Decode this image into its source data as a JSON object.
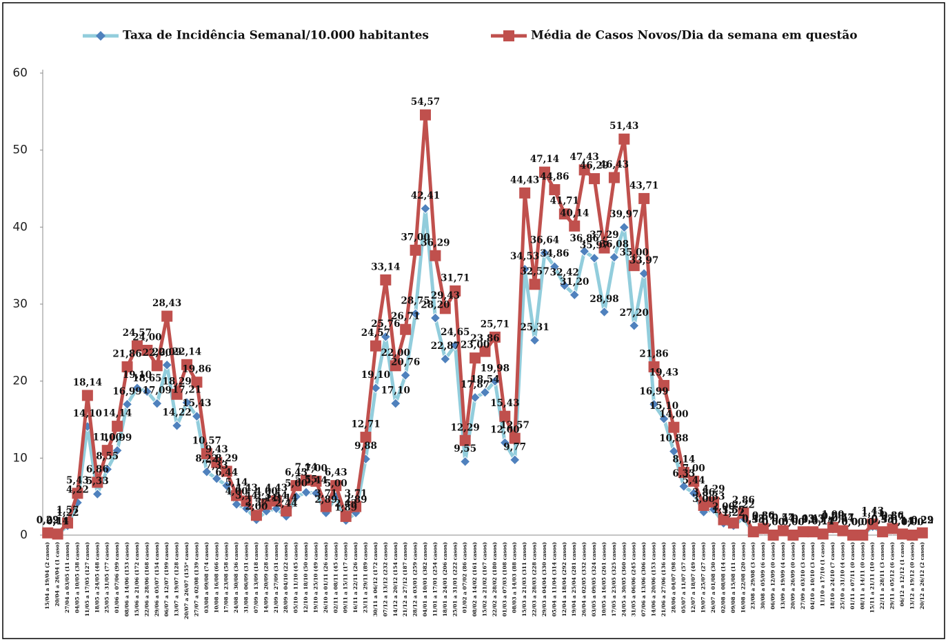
{
  "chart_data": {
    "type": "line",
    "categories": [
      "15/04 a 19/04 (2 casos)",
      "20/04 a 26/04 (1 caso)",
      "27/04 a 03/05 (11 casos)",
      "04/05 a 10/05 (38 casos)",
      "11/05 a 17/05 (127 casos)",
      "18/05 a 24/05 (48 casos)",
      "25/05 a 31/05 (77 casos)",
      "01/06 a 07/06 (99 casos)",
      "08/06 a 14/06 (153 casos)",
      "15/06 a 21/06 (172 casos)",
      "22/06 a 28/06 (168 casos)",
      "29/06 a 05/07 (154 casos)",
      "06/07 a 12/07 (199 casos)",
      "13/07 a 19/07 (128 casos)",
      "20/07 a 26/07 (155* casos)",
      "27/07 a 02/08 (139 casos)",
      "03/08 a 09/08 (74 casos)",
      "10/08 a 16/08 (66 casos)",
      "17/08 a 23/08 (58 casos)",
      "24/08 a 30/08 (36 casos)",
      "31/08 a 06/09 (31 casos)",
      "07/09 a 13/09 (18 casos)",
      "14/09 a 20/09 (28 casos)",
      "21/09 a 27/09 (31 casos)",
      "28/09 a 04/10 (22 casos)",
      "05/10 a 11/10 (45 casos)",
      "12/10 a 18/10 (50 casos)",
      "19/10 a 25/10 (49 casos)",
      "26/10 a 01/11 (26 casos)",
      "02/11 a 08/11 (45 casos)",
      "09/11 a 15/11 (17 casos)",
      "16/11 a 22/11 (26 casos)",
      "23/11 a 29/11 (89 casos)",
      "30/11 a 06/12 (172 casos)",
      "07/12 a 13/12 (232 casos)",
      "14/12 a 20/12 (154 casos)",
      "21/12 a 27/12 (187 casos)",
      "28/12 a 03/01 (259 casos)",
      "04/01 a 10/01 (382 casos)",
      "11/01 a 17/01 (254 casos)",
      "18/01 a 24/01 (206 casos)",
      "25/01 a 31/01 (222 casos)",
      "01/02 a 07/02 (86 casos)",
      "08/02 a 14/02 (161 casos)",
      "15/02 a 21/02 (167 casos)",
      "22/02 a 28/02 (180 casos)",
      "01/03 a 07/03 (108 casos)",
      "08/03 a 14/03 (88 casos)",
      "15/03 a 21/03 (311 casos)",
      "22/03 a 28/03 (228 casos)",
      "29/03 a 04/04 (330 casos)",
      "05/04 a 11/04 (314 casos)",
      "12/04 a 18/04 (292 casos)",
      "19/04 a 25/04 (281 casos)",
      "26/04 a 02/05 (332 casos)",
      "03/05 a 09/05 (324 casos)",
      "10/05 a 16/05 (261 casos)",
      "17/05 a 23/05 (325 casos)",
      "24/05 a 30/05 (360 casos)",
      "31/05 a 06/06 (245 casos)",
      "07/06 a 13/06 (306 casos)",
      "14/06 a 20/06 (153 casos)",
      "21/06 a 27/06 (136 casos)",
      "28/06 a 04/07 (98 casos)",
      "05/07 a 11/07 (57 casos)",
      "12/07 a 18/07 (49 casos)",
      "19/07 a 25/07 (27 casos)",
      "26/07 a 01/08 (30 casos)",
      "02/08 a 08/08 (14 casos)",
      "09/08 a 15/08 (11 casos)",
      "16/08 a 22/08 (20 casos)",
      "23/08 a 29/08 (3 casos)",
      "30/08 a 05/09 (6 casos)",
      "06/09 a 12/09 (0 casos)",
      "13/09 a 19/09 (4 casos)",
      "20/09 a 26/09 (0 casos)",
      "27/09 a 03/10 (3 casos)",
      "04/10 a 10/10 (3 casos)",
      "11/10 a 17/10 (1 caso)",
      "18/10 a 24/10 (7 casos)",
      "25/10 a 31/10 (4 casos)",
      "01/11 a 07/11 (0 casos)",
      "08/11 a 14/11 (0 casos)",
      "15/11 a 21/11 (10 casos)",
      "22/11 a 28/11 (3 casos)",
      "29/11 a 05/12 (6 casos)",
      "06/12 a 12/12 (1 caso)",
      "13/12 a 19/12 (0 casos)",
      "20/12 a 26/12 (2 casos)"
    ],
    "series": [
      {
        "name": "Taxa de Incidência Semanal/10.000 habitantes",
        "color": "#92cddc",
        "marker_color": "#4f81bd",
        "marker": "diamond",
        "values": [
          0.22,
          0.11,
          1.22,
          4.22,
          14.1,
          5.33,
          8.55,
          10.99,
          16.99,
          19.1,
          18.65,
          17.09,
          22.09,
          14.22,
          17.21,
          15.43,
          8.22,
          7.33,
          6.44,
          4.0,
          3.44,
          2.0,
          3.11,
          3.44,
          2.44,
          5.0,
          5.55,
          5.44,
          2.89,
          5.0,
          1.89,
          2.89,
          9.88,
          19.1,
          25.76,
          17.1,
          20.76,
          28.75,
          42.41,
          28.2,
          22.87,
          24.65,
          9.55,
          17.87,
          18.54,
          19.98,
          12.0,
          9.77,
          34.53,
          25.31,
          36.64,
          34.86,
          32.42,
          31.2,
          36.86,
          35.97,
          28.98,
          36.08,
          39.97,
          27.2,
          33.97,
          16.99,
          15.1,
          10.88,
          6.33,
          5.44,
          3.0,
          3.33,
          1.55,
          1.22,
          2.22,
          0.33,
          0.67,
          0.0,
          0.44,
          0.0,
          0.33,
          0.33,
          0.11,
          0.78,
          0.44,
          0.0,
          0.0,
          1.11,
          0.33,
          0.67,
          0.11,
          0.0,
          0.22
        ],
        "value_labels": [
          "0,22",
          "0,11",
          "1,22",
          "4,22",
          "14,10",
          "5,33",
          "8,55",
          "10,99",
          "16,99",
          "19,10",
          "18,65",
          "17,09",
          "22,09",
          "14,22",
          "17,21",
          "15,43",
          "8,22",
          "7,33",
          "6,44",
          "4,00",
          "3,44",
          "2,00",
          "3,11",
          "3,44",
          "2,44",
          "5,00",
          "5,55",
          "5,44",
          "2,89",
          "5,00",
          "1,89",
          "2,89",
          "9,88",
          "19,10",
          "25,76",
          "17,10",
          "20,76",
          "28,75",
          "42,41",
          "28,20",
          "22,87",
          "24,65",
          "9,55",
          "17,87",
          "18,54",
          "19,98",
          "12,00",
          "9,77",
          "34,53",
          "25,31",
          "36,64",
          "34,86",
          "32,42",
          "31,20",
          "36,86",
          "35,97",
          "28,98",
          "36,08",
          "39,97",
          "27,20",
          "33,97",
          "16,99",
          "15,10",
          "10,88",
          "6,33",
          "5,44",
          "3,00",
          "3,33",
          "1,55",
          "1,22",
          "2,22",
          "0,33",
          "0,67",
          "0,00",
          "0,44",
          "0,00",
          "0,33",
          "0,33",
          "0,11",
          "0,78",
          "0,44",
          "0,00",
          "0,00",
          "1,11",
          "0,33",
          "0,67",
          "0,11",
          "0,00",
          "0,22"
        ]
      },
      {
        "name": "Média de Casos Novos/Dia da semana em questão",
        "color": "#c0504d",
        "marker_color": "#c0504d",
        "marker": "square",
        "values": [
          0.29,
          0.14,
          1.57,
          5.43,
          18.14,
          6.86,
          11.0,
          14.14,
          21.86,
          24.57,
          24.0,
          22.0,
          28.43,
          18.29,
          22.14,
          19.86,
          10.57,
          9.43,
          8.29,
          5.14,
          4.43,
          2.57,
          4.0,
          4.43,
          3.14,
          6.43,
          7.14,
          7.0,
          3.71,
          6.43,
          2.43,
          3.71,
          12.71,
          24.57,
          33.14,
          22.0,
          26.71,
          37.0,
          54.57,
          36.29,
          29.43,
          31.71,
          12.29,
          23.0,
          23.86,
          25.71,
          15.43,
          12.57,
          44.43,
          32.57,
          47.14,
          44.86,
          41.71,
          40.14,
          47.43,
          46.29,
          37.29,
          46.43,
          51.43,
          35.0,
          43.71,
          21.86,
          19.43,
          14.0,
          8.14,
          7.0,
          3.86,
          4.29,
          2.0,
          1.57,
          2.86,
          0.43,
          0.86,
          0.0,
          0.57,
          0.0,
          0.43,
          0.43,
          0.14,
          1.0,
          0.57,
          0.0,
          0.0,
          1.43,
          0.43,
          0.86,
          0.14,
          0.0,
          0.29
        ],
        "value_labels": [
          "0,29",
          "0,14",
          "1,57",
          "5,43",
          "18,14",
          "6,86",
          "11,00",
          "14,14",
          "21,86",
          "24,57",
          "24,00",
          "22,00",
          "28,43",
          "18,29",
          "22,14",
          "19,86",
          "10,57",
          "9,43",
          "8,29",
          "5,14",
          "4,43",
          "2,57",
          "4,00",
          "4,43",
          "3,14",
          "6,43",
          "7,14",
          "7,00",
          "3,71",
          "6,43",
          "2,43",
          "3,71",
          "12,71",
          "24,57",
          "33,14",
          "22,00",
          "26,71",
          "37,00",
          "54,57",
          "36,29",
          "29,43",
          "31,71",
          "12,29",
          "23,00",
          "23,86",
          "25,71",
          "15,43",
          "12,57",
          "44,43",
          "32,57",
          "47,14",
          "44,86",
          "41,71",
          "40,14",
          "47,43",
          "46,29",
          "37,29",
          "46,43",
          "51,43",
          "35,00",
          "43,71",
          "21,86",
          "19,43",
          "14,00",
          "8,14",
          "7,00",
          "3,86",
          "4,29",
          "2,00",
          "1,57",
          "2,86",
          "0,43",
          "0,86",
          "0,00",
          "0,57",
          "0,00",
          "0,43",
          "0,43",
          "0,14",
          "1,00",
          "0,57",
          "0,00",
          "0,00",
          "1,43",
          "0,43",
          "0,86",
          "0,14",
          "0,00",
          "0,29"
        ]
      }
    ],
    "ylim": [
      0,
      60
    ],
    "yticks": [
      0,
      10,
      20,
      30,
      40,
      50,
      60
    ],
    "grid": false,
    "legend": "top"
  }
}
